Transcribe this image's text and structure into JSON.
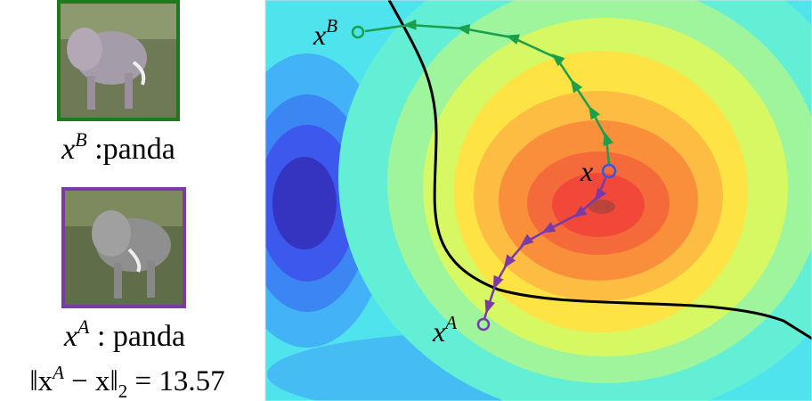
{
  "images": [
    {
      "caption": {
        "var": "x",
        "sup": "B",
        "label": " :panda"
      }
    },
    {
      "caption": {
        "var": "x",
        "sup": "A",
        "label": " : panda"
      },
      "distance": {
        "open": "‖x",
        "sup": "A",
        "mid": " − x‖",
        "sub": "2",
        "rest": " = 13.57"
      }
    }
  ],
  "plot": {
    "labels": [
      {
        "var": "x",
        "sup": "B"
      },
      {
        "var": "x"
      },
      {
        "var": "x",
        "sup": "A"
      }
    ]
  }
}
